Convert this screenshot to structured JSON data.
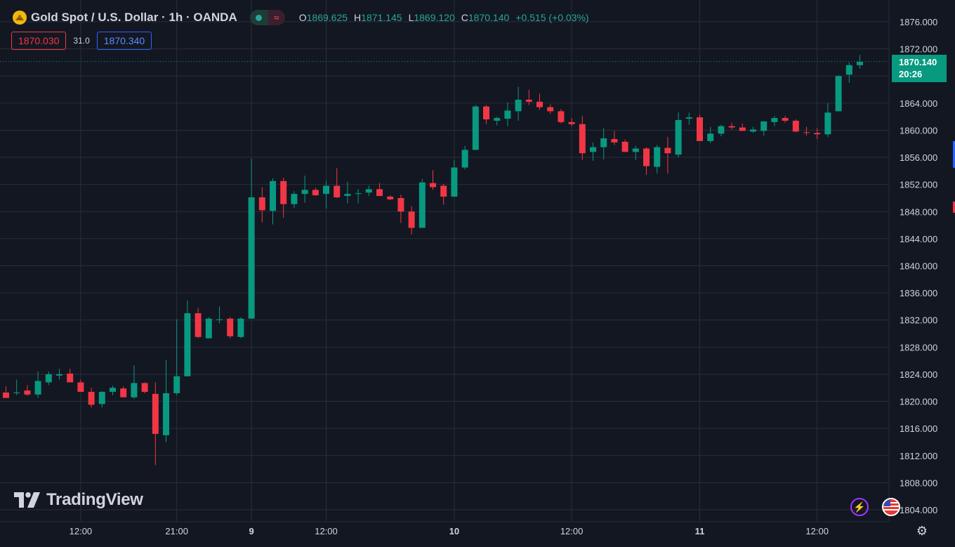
{
  "header": {
    "title": "Gold Spot / U.S. Dollar · 1h · OANDA",
    "ohlc": [
      {
        "key": "O",
        "value": "1869.625"
      },
      {
        "key": "H",
        "value": "1871.145"
      },
      {
        "key": "L",
        "value": "1869.120"
      },
      {
        "key": "C",
        "value": "1870.140"
      }
    ],
    "change": "+0.515 (+0.03%)",
    "replay_icon": "wave-icon"
  },
  "quotes": {
    "sell": "1870.030",
    "spread": "31.0",
    "buy": "1870.340"
  },
  "price_tag": {
    "price": "1870.140",
    "countdown": "20:26"
  },
  "brand": {
    "name": "TradingView"
  },
  "colors": {
    "background": "#131722",
    "grid": "#2a2e39",
    "up": "#089981",
    "down": "#f23645",
    "text": "#d1d4dc"
  },
  "chart_data": {
    "type": "candlestick",
    "title": "Gold Spot / U.S. Dollar · 1h · OANDA",
    "ylim": [
      1802,
      1878
    ],
    "y_ticks": [
      "1876.000",
      "1872.000",
      "1868.000",
      "1864.000",
      "1860.000",
      "1856.000",
      "1852.000",
      "1848.000",
      "1844.000",
      "1840.000",
      "1836.000",
      "1832.000",
      "1828.000",
      "1824.000",
      "1820.000",
      "1816.000",
      "1812.000",
      "1808.000",
      "1804.000"
    ],
    "x_tick_labels": [
      {
        "label": "12:00",
        "index": 7
      },
      {
        "label": "21:00",
        "index": 16
      },
      {
        "label": "9",
        "index": 23
      },
      {
        "label": "12:00",
        "index": 30
      },
      {
        "label": "10",
        "index": 42
      },
      {
        "label": "12:00",
        "index": 53
      },
      {
        "label": "11",
        "index": 65
      },
      {
        "label": "12:00",
        "index": 76
      }
    ],
    "last_price": 1870.14,
    "candles": [
      {
        "o": 1821.3,
        "h": 1822.2,
        "l": 1820.5,
        "c": 1820.5
      },
      {
        "o": 1821.3,
        "h": 1823.2,
        "l": 1820.9,
        "c": 1821.3
      },
      {
        "o": 1821.6,
        "h": 1822.4,
        "l": 1820.8,
        "c": 1821.0
      },
      {
        "o": 1821.0,
        "h": 1824.4,
        "l": 1820.5,
        "c": 1823.0
      },
      {
        "o": 1822.8,
        "h": 1824.4,
        "l": 1822.4,
        "c": 1824.0
      },
      {
        "o": 1823.8,
        "h": 1824.8,
        "l": 1823.2,
        "c": 1824.0
      },
      {
        "o": 1824.1,
        "h": 1824.8,
        "l": 1822.8,
        "c": 1822.8
      },
      {
        "o": 1822.8,
        "h": 1823.2,
        "l": 1821.4,
        "c": 1821.4
      },
      {
        "o": 1821.4,
        "h": 1822.0,
        "l": 1819.1,
        "c": 1819.5
      },
      {
        "o": 1819.6,
        "h": 1821.5,
        "l": 1819.1,
        "c": 1821.4
      },
      {
        "o": 1821.4,
        "h": 1822.3,
        "l": 1820.9,
        "c": 1822.0
      },
      {
        "o": 1821.9,
        "h": 1822.2,
        "l": 1820.6,
        "c": 1820.6
      },
      {
        "o": 1820.6,
        "h": 1825.3,
        "l": 1820.4,
        "c": 1822.7
      },
      {
        "o": 1822.7,
        "h": 1822.8,
        "l": 1821.2,
        "c": 1821.4
      },
      {
        "o": 1821.1,
        "h": 1822.8,
        "l": 1810.6,
        "c": 1815.2
      },
      {
        "o": 1815.0,
        "h": 1826.1,
        "l": 1814.0,
        "c": 1821.2
      },
      {
        "o": 1821.2,
        "h": 1832.1,
        "l": 1820.9,
        "c": 1823.7
      },
      {
        "o": 1823.7,
        "h": 1834.9,
        "l": 1823.7,
        "c": 1833.0
      },
      {
        "o": 1833.0,
        "h": 1833.8,
        "l": 1829.3,
        "c": 1829.5
      },
      {
        "o": 1829.3,
        "h": 1832.4,
        "l": 1829.3,
        "c": 1832.2
      },
      {
        "o": 1832.1,
        "h": 1834.0,
        "l": 1831.5,
        "c": 1832.1
      },
      {
        "o": 1832.2,
        "h": 1832.4,
        "l": 1829.3,
        "c": 1829.6
      },
      {
        "o": 1829.5,
        "h": 1832.4,
        "l": 1829.3,
        "c": 1832.2
      },
      {
        "o": 1832.2,
        "h": 1855.8,
        "l": 1832.2,
        "c": 1850.1
      },
      {
        "o": 1850.1,
        "h": 1851.6,
        "l": 1846.4,
        "c": 1848.2
      },
      {
        "o": 1848.1,
        "h": 1852.9,
        "l": 1846.1,
        "c": 1852.5
      },
      {
        "o": 1852.5,
        "h": 1853.0,
        "l": 1847.1,
        "c": 1849.1
      },
      {
        "o": 1849.1,
        "h": 1851.0,
        "l": 1848.5,
        "c": 1850.6
      },
      {
        "o": 1850.6,
        "h": 1853.3,
        "l": 1849.3,
        "c": 1851.2
      },
      {
        "o": 1851.2,
        "h": 1851.5,
        "l": 1850.3,
        "c": 1850.4
      },
      {
        "o": 1850.6,
        "h": 1852.5,
        "l": 1848.4,
        "c": 1851.8
      },
      {
        "o": 1851.8,
        "h": 1854.4,
        "l": 1850.0,
        "c": 1850.1
      },
      {
        "o": 1850.3,
        "h": 1852.4,
        "l": 1849.2,
        "c": 1850.6
      },
      {
        "o": 1850.6,
        "h": 1851.3,
        "l": 1849.2,
        "c": 1850.7
      },
      {
        "o": 1850.8,
        "h": 1851.8,
        "l": 1850.3,
        "c": 1851.3
      },
      {
        "o": 1851.3,
        "h": 1852.2,
        "l": 1850.3,
        "c": 1850.3
      },
      {
        "o": 1850.2,
        "h": 1850.4,
        "l": 1849.7,
        "c": 1849.8
      },
      {
        "o": 1850.0,
        "h": 1850.5,
        "l": 1846.3,
        "c": 1848.0
      },
      {
        "o": 1848.0,
        "h": 1848.8,
        "l": 1844.6,
        "c": 1845.6
      },
      {
        "o": 1845.6,
        "h": 1852.8,
        "l": 1845.6,
        "c": 1852.3
      },
      {
        "o": 1852.2,
        "h": 1854.1,
        "l": 1851.2,
        "c": 1851.6
      },
      {
        "o": 1851.8,
        "h": 1852.1,
        "l": 1849.0,
        "c": 1850.2
      },
      {
        "o": 1850.2,
        "h": 1855.6,
        "l": 1850.2,
        "c": 1854.5
      },
      {
        "o": 1854.5,
        "h": 1857.7,
        "l": 1854.2,
        "c": 1857.1
      },
      {
        "o": 1857.1,
        "h": 1863.7,
        "l": 1857.1,
        "c": 1863.5
      },
      {
        "o": 1863.5,
        "h": 1863.7,
        "l": 1860.9,
        "c": 1861.6
      },
      {
        "o": 1861.4,
        "h": 1862.0,
        "l": 1860.7,
        "c": 1861.8
      },
      {
        "o": 1861.7,
        "h": 1864.1,
        "l": 1860.6,
        "c": 1862.9
      },
      {
        "o": 1862.8,
        "h": 1866.4,
        "l": 1861.4,
        "c": 1864.5
      },
      {
        "o": 1864.5,
        "h": 1866.0,
        "l": 1863.7,
        "c": 1864.2
      },
      {
        "o": 1864.2,
        "h": 1865.4,
        "l": 1863.0,
        "c": 1863.4
      },
      {
        "o": 1863.4,
        "h": 1863.8,
        "l": 1862.4,
        "c": 1862.8
      },
      {
        "o": 1862.8,
        "h": 1863.1,
        "l": 1861.0,
        "c": 1861.2
      },
      {
        "o": 1861.2,
        "h": 1861.8,
        "l": 1860.6,
        "c": 1860.9
      },
      {
        "o": 1860.9,
        "h": 1862.1,
        "l": 1855.6,
        "c": 1856.6
      },
      {
        "o": 1856.8,
        "h": 1858.2,
        "l": 1855.5,
        "c": 1857.5
      },
      {
        "o": 1857.5,
        "h": 1860.3,
        "l": 1855.7,
        "c": 1858.8
      },
      {
        "o": 1858.7,
        "h": 1859.9,
        "l": 1857.8,
        "c": 1858.2
      },
      {
        "o": 1858.3,
        "h": 1858.6,
        "l": 1856.8,
        "c": 1856.8
      },
      {
        "o": 1856.8,
        "h": 1857.7,
        "l": 1855.6,
        "c": 1857.3
      },
      {
        "o": 1857.3,
        "h": 1857.5,
        "l": 1853.4,
        "c": 1854.7
      },
      {
        "o": 1854.6,
        "h": 1857.8,
        "l": 1853.6,
        "c": 1857.5
      },
      {
        "o": 1857.4,
        "h": 1859.0,
        "l": 1853.6,
        "c": 1856.6
      },
      {
        "o": 1856.4,
        "h": 1862.6,
        "l": 1856.0,
        "c": 1861.5
      },
      {
        "o": 1861.7,
        "h": 1862.6,
        "l": 1860.8,
        "c": 1861.9
      },
      {
        "o": 1861.9,
        "h": 1862.3,
        "l": 1858.4,
        "c": 1858.4
      },
      {
        "o": 1858.4,
        "h": 1860.5,
        "l": 1858.1,
        "c": 1859.5
      },
      {
        "o": 1859.5,
        "h": 1860.8,
        "l": 1859.1,
        "c": 1860.6
      },
      {
        "o": 1860.6,
        "h": 1861.1,
        "l": 1860.1,
        "c": 1860.4
      },
      {
        "o": 1860.4,
        "h": 1861.0,
        "l": 1859.9,
        "c": 1859.9
      },
      {
        "o": 1859.8,
        "h": 1860.5,
        "l": 1859.6,
        "c": 1860.1
      },
      {
        "o": 1859.9,
        "h": 1861.3,
        "l": 1859.2,
        "c": 1861.3
      },
      {
        "o": 1861.2,
        "h": 1862.1,
        "l": 1860.6,
        "c": 1861.8
      },
      {
        "o": 1861.8,
        "h": 1862.1,
        "l": 1861.1,
        "c": 1861.4
      },
      {
        "o": 1861.4,
        "h": 1861.6,
        "l": 1859.7,
        "c": 1859.8
      },
      {
        "o": 1859.7,
        "h": 1860.5,
        "l": 1859.2,
        "c": 1859.6
      },
      {
        "o": 1859.6,
        "h": 1860.3,
        "l": 1858.7,
        "c": 1859.4
      },
      {
        "o": 1859.4,
        "h": 1864.0,
        "l": 1859.0,
        "c": 1862.6
      },
      {
        "o": 1862.8,
        "h": 1868.1,
        "l": 1862.8,
        "c": 1868.0
      },
      {
        "o": 1868.2,
        "h": 1870.0,
        "l": 1867.0,
        "c": 1869.6
      },
      {
        "o": 1869.6,
        "h": 1871.1,
        "l": 1869.1,
        "c": 1870.1
      }
    ]
  }
}
